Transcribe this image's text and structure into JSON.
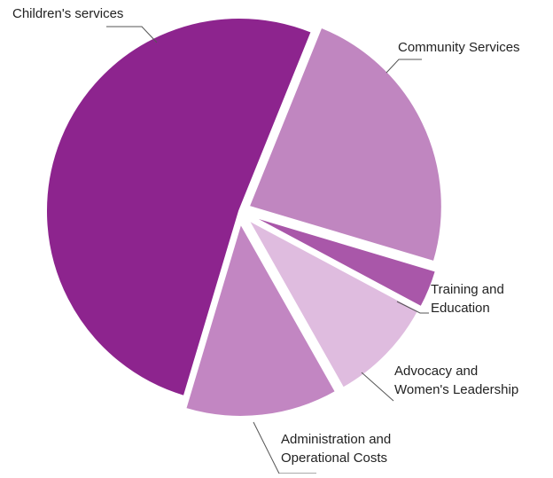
{
  "chart_data": {
    "type": "pie",
    "title": "",
    "slices": [
      {
        "label_lines": [
          "Community Services"
        ],
        "value": 23.5,
        "color": "#c086c0"
      },
      {
        "label_lines": [
          "Training and",
          "Education"
        ],
        "value": 3.2,
        "color": "#a957a9"
      },
      {
        "label_lines": [
          "Advocacy and",
          "Women's Leadership"
        ],
        "value": 9.0,
        "color": "#dfbcdf"
      },
      {
        "label_lines": [
          "Administration and",
          "Operational Costs"
        ],
        "value": 12.8,
        "color": "#c286c2"
      },
      {
        "label_lines": [
          "Children's services"
        ],
        "value": 51.5,
        "color": "#8d248e"
      }
    ]
  }
}
